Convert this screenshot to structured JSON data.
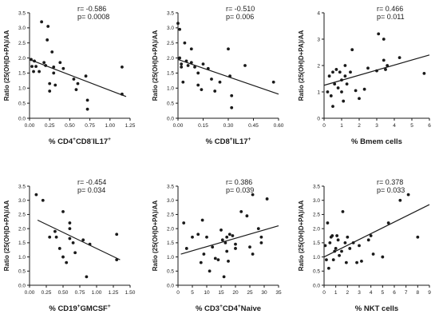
{
  "panels": [
    {
      "ylabel": "Ratio (25(OH)D+PA)/AA",
      "xlabel_parts": [
        {
          "t": "% CD4",
          "sup": false
        },
        {
          "t": "+",
          "sup": true
        },
        {
          "t": "CD8",
          "sup": false
        },
        {
          "t": "-",
          "sup": true
        },
        {
          "t": "IL17",
          "sup": false
        },
        {
          "t": "+",
          "sup": true
        }
      ],
      "stats": [
        "r= -0.586",
        "p= 0.0008"
      ]
    },
    {
      "ylabel": "Ratio (25(OH)D+PA)/AA",
      "xlabel_parts": [
        {
          "t": "% CD8",
          "sup": false
        },
        {
          "t": "+",
          "sup": true
        },
        {
          "t": "IL17",
          "sup": false
        },
        {
          "t": "+",
          "sup": true
        }
      ],
      "stats": [
        "r= -0.510",
        "p= 0.006"
      ]
    },
    {
      "ylabel": "Ratio (25(OH)D+PA)/AA",
      "xlabel_parts": [
        {
          "t": "% Bmem cells",
          "sup": false
        }
      ],
      "stats": [
        "r= 0.466",
        "p= 0.011"
      ]
    },
    {
      "ylabel": "Ratio (25(OH)D+PA)/AA",
      "xlabel_parts": [
        {
          "t": "% CD19",
          "sup": false
        },
        {
          "t": "+",
          "sup": true
        },
        {
          "t": "GMCSF",
          "sup": false
        },
        {
          "t": "+",
          "sup": true
        }
      ],
      "stats": [
        "r= -0.454",
        "p= 0.034"
      ]
    },
    {
      "ylabel": "Ratio (25(OH)D+PA)/AA",
      "xlabel_parts": [
        {
          "t": "% CD3",
          "sup": false
        },
        {
          "t": "+",
          "sup": true
        },
        {
          "t": "CD4",
          "sup": false
        },
        {
          "t": "+",
          "sup": true
        },
        {
          "t": "Naive",
          "sup": false
        }
      ],
      "stats": [
        "r= 0.386",
        "p= 0.039"
      ]
    },
    {
      "ylabel": "Ratio (25(OH)D+PA)/AA",
      "xlabel_parts": [
        {
          "t": "% NKT cells",
          "sup": false
        }
      ],
      "stats": [
        "r= 0.378",
        "p= 0.033"
      ]
    }
  ],
  "chart_data": [
    {
      "type": "scatter",
      "xlabel": "% CD4+CD8-IL17+",
      "ylabel": "Ratio (25(OH)D+PA)/AA",
      "xlim": [
        0,
        1.25
      ],
      "ylim": [
        0,
        3.5
      ],
      "xticks": [
        "0.00",
        "0.25",
        "0.50",
        "0.75",
        "1.00",
        "1.25"
      ],
      "yticks": [
        "0.0",
        "0.5",
        "1.0",
        "1.5",
        "2.0",
        "2.5",
        "3.0",
        "3.5"
      ],
      "annotation": {
        "r": "r= -0.586",
        "p": "p= 0.0008"
      },
      "fit": {
        "x": [
          0,
          1.2
        ],
        "y": [
          1.95,
          0.72
        ]
      },
      "points": [
        [
          0.02,
          1.95
        ],
        [
          0.03,
          1.72
        ],
        [
          0.05,
          1.55
        ],
        [
          0.06,
          1.9
        ],
        [
          0.08,
          1.72
        ],
        [
          0.12,
          1.55
        ],
        [
          0.15,
          3.2
        ],
        [
          0.18,
          1.85
        ],
        [
          0.2,
          1.75
        ],
        [
          0.22,
          2.6
        ],
        [
          0.23,
          3.05
        ],
        [
          0.25,
          1.15
        ],
        [
          0.25,
          0.9
        ],
        [
          0.28,
          2.2
        ],
        [
          0.3,
          1.7
        ],
        [
          0.3,
          1.5
        ],
        [
          0.32,
          1.1
        ],
        [
          0.38,
          1.85
        ],
        [
          0.42,
          1.65
        ],
        [
          0.55,
          1.3
        ],
        [
          0.58,
          0.95
        ],
        [
          0.6,
          1.15
        ],
        [
          0.7,
          1.4
        ],
        [
          0.72,
          0.6
        ],
        [
          0.72,
          0.3
        ],
        [
          1.15,
          1.7
        ],
        [
          1.15,
          0.8
        ]
      ]
    },
    {
      "type": "scatter",
      "xlabel": "% CD8+IL17+",
      "ylabel": "Ratio (25(OH)D+PA)/AA",
      "xlim": [
        0,
        0.6
      ],
      "ylim": [
        0,
        3.5
      ],
      "xticks": [
        "0.00",
        "0.15",
        "0.30",
        "0.45",
        "0.60"
      ],
      "yticks": [
        "0.0",
        "0.5",
        "1.0",
        "1.5",
        "2.0",
        "2.5",
        "3.0",
        "3.5"
      ],
      "annotation": {
        "r": "r= -0.510",
        "p": "p= 0.006"
      },
      "fit": {
        "x": [
          0,
          0.6
        ],
        "y": [
          1.95,
          0.8
        ]
      },
      "points": [
        [
          0.0,
          3.15
        ],
        [
          0.01,
          2.95
        ],
        [
          0.01,
          2.0
        ],
        [
          0.02,
          1.8
        ],
        [
          0.02,
          1.7
        ],
        [
          0.03,
          1.2
        ],
        [
          0.04,
          2.5
        ],
        [
          0.05,
          1.9
        ],
        [
          0.06,
          1.75
        ],
        [
          0.08,
          1.85
        ],
        [
          0.08,
          2.3
        ],
        [
          0.1,
          1.7
        ],
        [
          0.12,
          1.1
        ],
        [
          0.12,
          1.5
        ],
        [
          0.14,
          0.95
        ],
        [
          0.15,
          1.8
        ],
        [
          0.18,
          1.65
        ],
        [
          0.2,
          1.3
        ],
        [
          0.22,
          0.9
        ],
        [
          0.25,
          1.2
        ],
        [
          0.3,
          2.3
        ],
        [
          0.31,
          1.4
        ],
        [
          0.32,
          0.75
        ],
        [
          0.32,
          0.35
        ],
        [
          0.4,
          1.75
        ],
        [
          0.57,
          1.2
        ]
      ]
    },
    {
      "type": "scatter",
      "xlabel": "% Bmem cells",
      "ylabel": "Ratio (25(OH)D+PA)/AA",
      "xlim": [
        0,
        6
      ],
      "ylim": [
        0,
        4
      ],
      "xticks": [
        "0",
        "1",
        "2",
        "3",
        "4",
        "5",
        "6"
      ],
      "yticks": [
        "0",
        "1",
        "2",
        "3",
        "4"
      ],
      "annotation": {
        "r": "r= 0.466",
        "p": "p= 0.011"
      },
      "fit": {
        "x": [
          0,
          6
        ],
        "y": [
          1.25,
          2.4
        ]
      },
      "points": [
        [
          0.2,
          1.0
        ],
        [
          0.3,
          1.6
        ],
        [
          0.4,
          0.85
        ],
        [
          0.5,
          1.75
        ],
        [
          0.5,
          0.45
        ],
        [
          0.6,
          1.3
        ],
        [
          0.7,
          1.85
        ],
        [
          0.8,
          1.15
        ],
        [
          0.9,
          1.75
        ],
        [
          1.0,
          1.45
        ],
        [
          1.0,
          1.0
        ],
        [
          1.1,
          0.65
        ],
        [
          1.2,
          2.0
        ],
        [
          1.2,
          1.6
        ],
        [
          1.3,
          1.3
        ],
        [
          1.5,
          1.75
        ],
        [
          1.6,
          2.6
        ],
        [
          1.8,
          1.05
        ],
        [
          2.0,
          0.75
        ],
        [
          2.3,
          1.1
        ],
        [
          2.5,
          1.9
        ],
        [
          3.0,
          1.8
        ],
        [
          3.1,
          3.2
        ],
        [
          3.4,
          2.2
        ],
        [
          3.4,
          3.0
        ],
        [
          3.5,
          1.85
        ],
        [
          3.6,
          2.0
        ],
        [
          4.3,
          2.3
        ],
        [
          5.7,
          1.7
        ]
      ]
    },
    {
      "type": "scatter",
      "xlabel": "% CD19+GMCSF+",
      "ylabel": "Ratio (25(OH)D+PA)/AA",
      "xlim": [
        0,
        1.5
      ],
      "ylim": [
        0,
        3.5
      ],
      "xticks": [
        "0.00",
        "0.25",
        "0.50",
        "0.75",
        "1.00",
        "1.25",
        "1.50"
      ],
      "yticks": [
        "0.0",
        "0.5",
        "1.0",
        "1.5",
        "2.0",
        "2.5",
        "3.0",
        "3.5"
      ],
      "annotation": {
        "r": "r= -0.454",
        "p": "p= 0.034"
      },
      "fit": {
        "x": [
          0.12,
          1.35
        ],
        "y": [
          2.3,
          0.9
        ]
      },
      "points": [
        [
          0.1,
          3.2
        ],
        [
          0.2,
          3.0
        ],
        [
          0.3,
          1.7
        ],
        [
          0.38,
          1.9
        ],
        [
          0.4,
          1.7
        ],
        [
          0.45,
          1.3
        ],
        [
          0.5,
          2.6
        ],
        [
          0.5,
          1.0
        ],
        [
          0.55,
          0.8
        ],
        [
          0.6,
          2.2
        ],
        [
          0.6,
          2.0
        ],
        [
          0.6,
          1.65
        ],
        [
          0.65,
          1.5
        ],
        [
          0.68,
          1.15
        ],
        [
          0.8,
          1.6
        ],
        [
          0.85,
          0.3
        ],
        [
          0.9,
          1.45
        ],
        [
          1.3,
          1.8
        ],
        [
          1.3,
          0.9
        ]
      ]
    },
    {
      "type": "scatter",
      "xlabel": "% CD3+CD4+Naive",
      "ylabel": "Ratio (25(OH)D+PA)/AA",
      "xlim": [
        0,
        35
      ],
      "ylim": [
        0,
        3.5
      ],
      "xticks": [
        "0",
        "5",
        "10",
        "15",
        "20",
        "25",
        "30",
        "35"
      ],
      "yticks": [
        "0.0",
        "0.5",
        "1.0",
        "1.5",
        "2.0",
        "2.5",
        "3.0",
        "3.5"
      ],
      "annotation": {
        "r": "r= 0.386",
        "p": "p= 0.039"
      },
      "fit": {
        "x": [
          1,
          35
        ],
        "y": [
          1.1,
          2.1
        ]
      },
      "points": [
        [
          2,
          2.2
        ],
        [
          3,
          1.3
        ],
        [
          5,
          1.7
        ],
        [
          7,
          1.8
        ],
        [
          8,
          0.8
        ],
        [
          8.5,
          2.3
        ],
        [
          9,
          1.1
        ],
        [
          10,
          1.7
        ],
        [
          11,
          0.5
        ],
        [
          12,
          1.35
        ],
        [
          13,
          0.95
        ],
        [
          14,
          0.9
        ],
        [
          15,
          1.95
        ],
        [
          15.5,
          1.6
        ],
        [
          16,
          0.3
        ],
        [
          16.5,
          1.5
        ],
        [
          17,
          1.7
        ],
        [
          17,
          1.2
        ],
        [
          17.5,
          0.85
        ],
        [
          18,
          1.8
        ],
        [
          19,
          1.75
        ],
        [
          20,
          1.45
        ],
        [
          20,
          1.3
        ],
        [
          22,
          2.6
        ],
        [
          24,
          2.45
        ],
        [
          25,
          1.35
        ],
        [
          26,
          3.2
        ],
        [
          26,
          1.1
        ],
        [
          28,
          2.0
        ],
        [
          29,
          1.5
        ],
        [
          29,
          1.7
        ],
        [
          31,
          3.05
        ]
      ]
    },
    {
      "type": "scatter",
      "xlabel": "% NKT cells",
      "ylabel": "Ratio (25(OH)D+PA)/AA",
      "xlim": [
        0,
        9
      ],
      "ylim": [
        0,
        3.5
      ],
      "xticks": [
        "0",
        "1",
        "2",
        "3",
        "4",
        "5",
        "6",
        "7",
        "8",
        "9"
      ],
      "yticks": [
        "0.0",
        "0.5",
        "1.0",
        "1.5",
        "2.0",
        "2.5",
        "3.0",
        "3.5"
      ],
      "annotation": {
        "r": "r= 0.378",
        "p": "p= 0.033"
      },
      "fit": {
        "x": [
          0,
          9
        ],
        "y": [
          1.0,
          2.85
        ]
      },
      "points": [
        [
          0.1,
          1.4
        ],
        [
          0.2,
          0.9
        ],
        [
          0.3,
          2.2
        ],
        [
          0.4,
          0.6
        ],
        [
          0.5,
          1.5
        ],
        [
          0.6,
          1.7
        ],
        [
          0.7,
          1.75
        ],
        [
          0.8,
          0.9
        ],
        [
          0.9,
          1.2
        ],
        [
          1.0,
          1.3
        ],
        [
          1.1,
          1.75
        ],
        [
          1.2,
          1.6
        ],
        [
          1.3,
          1.05
        ],
        [
          1.5,
          1.2
        ],
        [
          1.6,
          2.6
        ],
        [
          1.8,
          1.5
        ],
        [
          1.9,
          0.8
        ],
        [
          2.0,
          1.7
        ],
        [
          2.2,
          1.3
        ],
        [
          2.5,
          1.5
        ],
        [
          2.8,
          0.8
        ],
        [
          3.0,
          1.4
        ],
        [
          3.2,
          0.85
        ],
        [
          3.8,
          1.6
        ],
        [
          4.0,
          1.75
        ],
        [
          4.2,
          1.1
        ],
        [
          5.0,
          1.0
        ],
        [
          5.5,
          2.2
        ],
        [
          6.5,
          3.0
        ],
        [
          7.2,
          3.2
        ],
        [
          8.0,
          1.7
        ]
      ]
    }
  ]
}
